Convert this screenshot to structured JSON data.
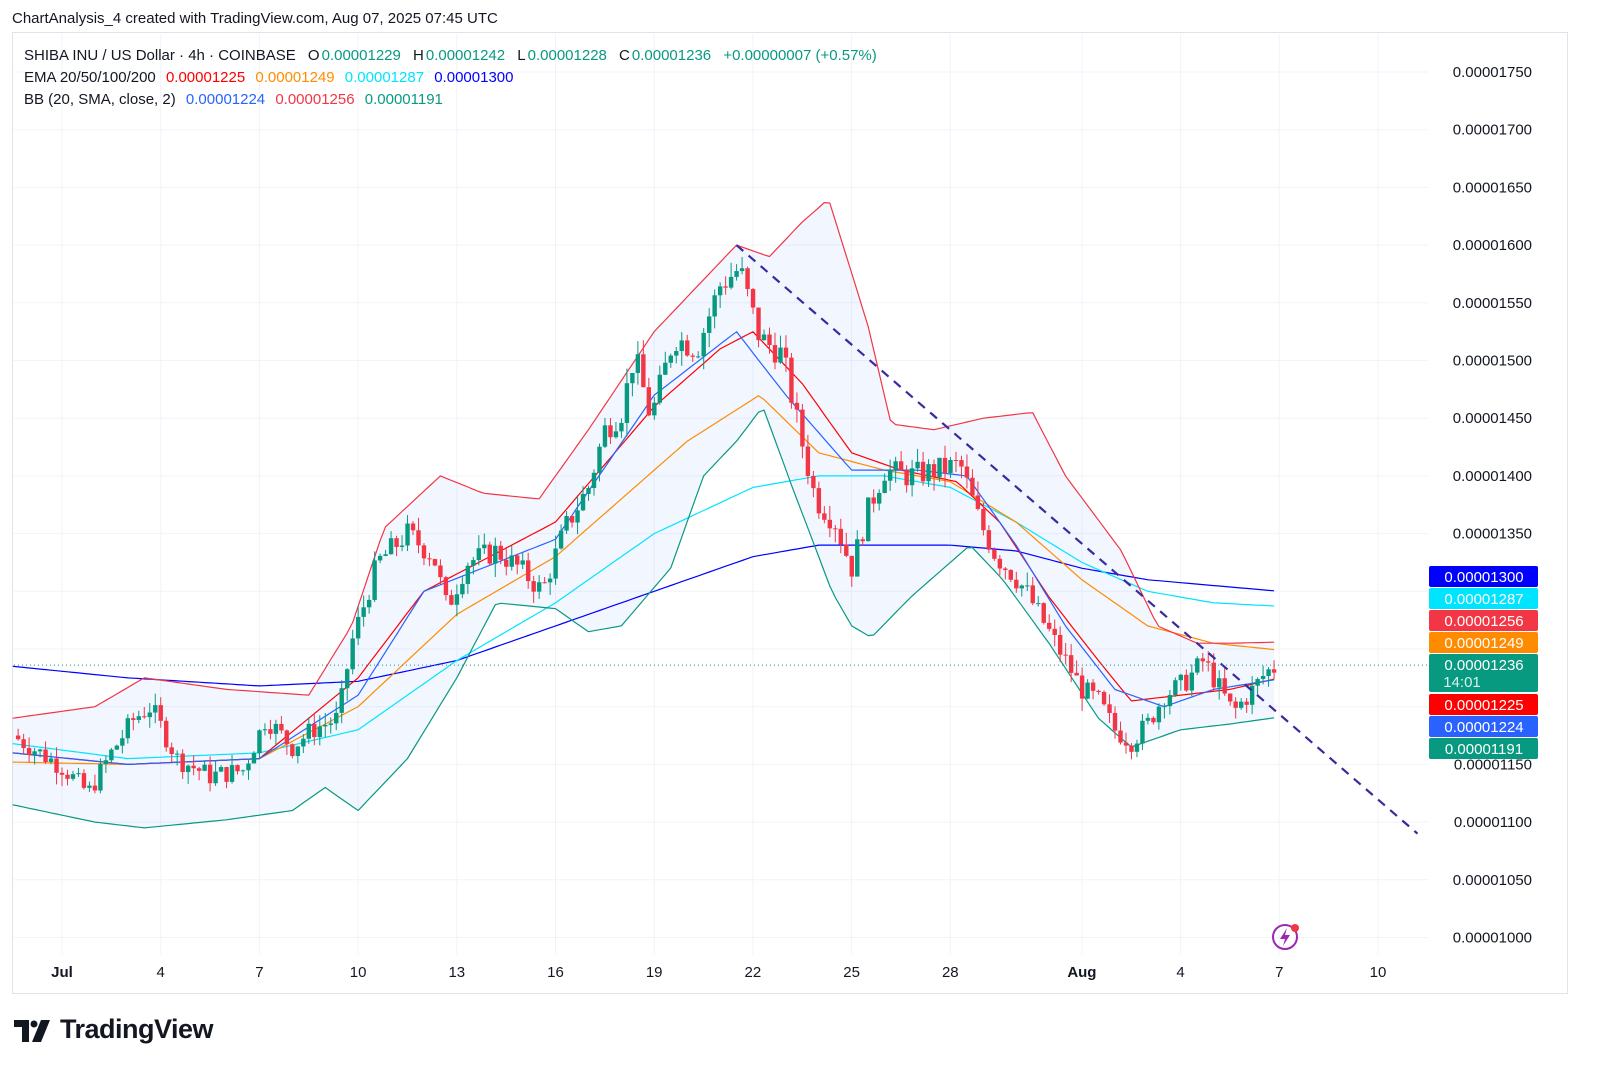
{
  "header": {
    "created_line": "ChartAnalysis_4 created with TradingView.com, Aug 07, 2025 07:45 UTC"
  },
  "legend": {
    "symbol": "SHIBA INU / US Dollar · 4h · COINBASE",
    "o_label": "O",
    "o_value": "0.00001229",
    "h_label": "H",
    "h_value": "0.00001242",
    "l_label": "L",
    "l_value": "0.00001228",
    "c_label": "C",
    "c_value": "0.00001236",
    "change": "+0.00000007 (+0.57%)",
    "ema_label": "EMA 20/50/100/200",
    "ema20": "0.00001225",
    "ema50": "0.00001249",
    "ema100": "0.00001287",
    "ema200": "0.00001300",
    "bb_label": "BB (20, SMA, close, 2)",
    "bb_basis": "0.00001224",
    "bb_upper": "0.00001256",
    "bb_lower": "0.00001191"
  },
  "price_tags": [
    {
      "value": "0.00001300",
      "color": "#0000ff"
    },
    {
      "value": "0.00001287",
      "color": "#00e5ff"
    },
    {
      "value": "0.00001256",
      "color": "#f23645"
    },
    {
      "value": "0.00001249",
      "color": "#ff8c00"
    },
    {
      "value": "0.00001236",
      "extra": "14:01",
      "color": "#089981"
    },
    {
      "value": "0.00001225",
      "color": "#ff0000"
    },
    {
      "value": "0.00001224",
      "color": "#2962ff"
    },
    {
      "value": "0.00001191",
      "color": "#089981"
    }
  ],
  "colors": {
    "up": "#089981",
    "down": "#f23645",
    "ema20": "#ff0000",
    "ema50": "#ff8c00",
    "ema100": "#00e5ff",
    "ema200": "#0000ff",
    "bb_basis": "#2962ff",
    "bb_upper": "#f23645",
    "bb_lower": "#089981",
    "bb_fill": "#2962ff",
    "trendline": "#3a2a9e"
  },
  "brand": {
    "name": "TradingView"
  },
  "chart_data": {
    "type": "candlestick",
    "timeframe": "4h",
    "y_ticks": [
      "0.00001750",
      "0.00001700",
      "0.00001650",
      "0.00001600",
      "0.00001550",
      "0.00001500",
      "0.00001450",
      "0.00001400",
      "0.00001350",
      "0.00001150",
      "0.00001100",
      "0.00001050",
      "0.00001000"
    ],
    "ylim": [
      9.85e-06,
      1.775e-05
    ],
    "x_ticks": [
      {
        "label": "Jul",
        "day": 1,
        "bold": true
      },
      {
        "label": "4",
        "day": 4
      },
      {
        "label": "7",
        "day": 7
      },
      {
        "label": "10",
        "day": 10
      },
      {
        "label": "13",
        "day": 13
      },
      {
        "label": "16",
        "day": 16
      },
      {
        "label": "19",
        "day": 19
      },
      {
        "label": "22",
        "day": 22
      },
      {
        "label": "25",
        "day": 25
      },
      {
        "label": "28",
        "day": 28
      },
      {
        "label": "Aug",
        "day": 32,
        "bold": true
      },
      {
        "label": "4",
        "day": 35
      },
      {
        "label": "7",
        "day": 38
      },
      {
        "label": "10",
        "day": 41
      }
    ],
    "ohlc_keyframes_e8": [
      [
        -0.5,
        1175
      ],
      [
        1.0,
        1148
      ],
      [
        1.8,
        1125
      ],
      [
        2.5,
        1160
      ],
      [
        3.2,
        1190
      ],
      [
        3.7,
        1200
      ],
      [
        4.5,
        1155
      ],
      [
        5.5,
        1140
      ],
      [
        6.5,
        1145
      ],
      [
        7.2,
        1190
      ],
      [
        8.0,
        1165
      ],
      [
        8.6,
        1180
      ],
      [
        9.4,
        1190
      ],
      [
        9.8,
        1255
      ],
      [
        10.6,
        1325
      ],
      [
        11.5,
        1350
      ],
      [
        12.3,
        1330
      ],
      [
        12.7,
        1285
      ],
      [
        13.3,
        1325
      ],
      [
        14.2,
        1335
      ],
      [
        14.9,
        1320
      ],
      [
        15.6,
        1300
      ],
      [
        16.3,
        1355
      ],
      [
        17.0,
        1390
      ],
      [
        17.5,
        1440
      ],
      [
        18.0,
        1455
      ],
      [
        18.4,
        1505
      ],
      [
        18.9,
        1450
      ],
      [
        19.6,
        1520
      ],
      [
        20.3,
        1510
      ],
      [
        21.0,
        1565
      ],
      [
        21.6,
        1580
      ],
      [
        22.2,
        1520
      ],
      [
        22.9,
        1505
      ],
      [
        23.4,
        1440
      ],
      [
        23.9,
        1380
      ],
      [
        24.5,
        1360
      ],
      [
        25.0,
        1320
      ],
      [
        25.5,
        1370
      ],
      [
        26.0,
        1405
      ],
      [
        26.7,
        1400
      ],
      [
        27.6,
        1405
      ],
      [
        28.3,
        1410
      ],
      [
        28.9,
        1360
      ],
      [
        29.4,
        1330
      ],
      [
        29.9,
        1315
      ],
      [
        30.3,
        1300
      ],
      [
        31.0,
        1265
      ],
      [
        31.5,
        1240
      ],
      [
        32.0,
        1215
      ],
      [
        32.5,
        1205
      ],
      [
        33.0,
        1180
      ],
      [
        33.5,
        1170
      ],
      [
        34.0,
        1185
      ],
      [
        34.5,
        1210
      ],
      [
        35.1,
        1220
      ],
      [
        35.7,
        1240
      ],
      [
        36.2,
        1215
      ],
      [
        36.6,
        1195
      ],
      [
        37.2,
        1215
      ],
      [
        37.6,
        1230
      ],
      [
        38.0,
        1236
      ]
    ],
    "ema20_e8": [
      [
        -0.5,
        1160
      ],
      [
        3,
        1150
      ],
      [
        7,
        1155
      ],
      [
        10,
        1225
      ],
      [
        12,
        1300
      ],
      [
        16,
        1360
      ],
      [
        19,
        1460
      ],
      [
        21,
        1510
      ],
      [
        22,
        1525
      ],
      [
        23.5,
        1480
      ],
      [
        25,
        1420
      ],
      [
        26.5,
        1405
      ],
      [
        28.2,
        1395
      ],
      [
        29.5,
        1360
      ],
      [
        31,
        1295
      ],
      [
        32.5,
        1240
      ],
      [
        33.5,
        1205
      ],
      [
        35,
        1210
      ],
      [
        36.5,
        1215
      ],
      [
        38,
        1225
      ]
    ],
    "ema50_e8": [
      [
        -0.5,
        1152
      ],
      [
        3,
        1150
      ],
      [
        7,
        1155
      ],
      [
        10,
        1200
      ],
      [
        13,
        1280
      ],
      [
        16,
        1330
      ],
      [
        18,
        1380
      ],
      [
        20,
        1430
      ],
      [
        22.2,
        1470
      ],
      [
        24,
        1420
      ],
      [
        26,
        1405
      ],
      [
        28,
        1395
      ],
      [
        30,
        1360
      ],
      [
        32,
        1310
      ],
      [
        34,
        1270
      ],
      [
        36,
        1255
      ],
      [
        38,
        1249
      ]
    ],
    "ema100_e8": [
      [
        -0.5,
        1168
      ],
      [
        3,
        1155
      ],
      [
        7,
        1160
      ],
      [
        10,
        1180
      ],
      [
        13,
        1240
      ],
      [
        16,
        1290
      ],
      [
        19,
        1350
      ],
      [
        22,
        1390
      ],
      [
        24,
        1400
      ],
      [
        26,
        1400
      ],
      [
        28,
        1390
      ],
      [
        30,
        1360
      ],
      [
        32,
        1325
      ],
      [
        34,
        1300
      ],
      [
        36,
        1290
      ],
      [
        38,
        1287
      ]
    ],
    "ema200_e8": [
      [
        -0.5,
        1235
      ],
      [
        3,
        1225
      ],
      [
        7,
        1218
      ],
      [
        10,
        1222
      ],
      [
        13,
        1240
      ],
      [
        16,
        1270
      ],
      [
        19,
        1300
      ],
      [
        22,
        1330
      ],
      [
        24,
        1340
      ],
      [
        28,
        1340
      ],
      [
        30,
        1335
      ],
      [
        32,
        1320
      ],
      [
        34,
        1310
      ],
      [
        36,
        1305
      ],
      [
        38,
        1300
      ]
    ],
    "bb_basis_e8": [
      [
        -0.5,
        1160
      ],
      [
        3,
        1150
      ],
      [
        7,
        1155
      ],
      [
        10,
        1210
      ],
      [
        12,
        1300
      ],
      [
        16,
        1345
      ],
      [
        19,
        1470
      ],
      [
        21.5,
        1525
      ],
      [
        23,
        1470
      ],
      [
        25,
        1405
      ],
      [
        27,
        1405
      ],
      [
        28.5,
        1400
      ],
      [
        30,
        1340
      ],
      [
        31.5,
        1270
      ],
      [
        33,
        1215
      ],
      [
        34.5,
        1200
      ],
      [
        36,
        1215
      ],
      [
        38,
        1224
      ]
    ],
    "bb_upper_e8": [
      [
        -0.5,
        1190
      ],
      [
        2,
        1200
      ],
      [
        3.5,
        1225
      ],
      [
        6,
        1215
      ],
      [
        8.5,
        1210
      ],
      [
        9.8,
        1270
      ],
      [
        10.8,
        1355
      ],
      [
        12.5,
        1400
      ],
      [
        13.8,
        1385
      ],
      [
        15.5,
        1380
      ],
      [
        17,
        1440
      ],
      [
        19,
        1525
      ],
      [
        21.5,
        1600
      ],
      [
        22.5,
        1590
      ],
      [
        23.5,
        1620
      ],
      [
        24.3,
        1640
      ],
      [
        25.5,
        1530
      ],
      [
        26.2,
        1445
      ],
      [
        27.5,
        1440
      ],
      [
        29,
        1450
      ],
      [
        30.5,
        1455
      ],
      [
        31.5,
        1400
      ],
      [
        33.2,
        1335
      ],
      [
        34.3,
        1270
      ],
      [
        35.5,
        1255
      ],
      [
        36.5,
        1255
      ],
      [
        38,
        1256
      ]
    ],
    "bb_lower_e8": [
      [
        -0.5,
        1115
      ],
      [
        2,
        1100
      ],
      [
        3.5,
        1095
      ],
      [
        6,
        1102
      ],
      [
        8,
        1110
      ],
      [
        9,
        1130
      ],
      [
        10,
        1110
      ],
      [
        11.5,
        1155
      ],
      [
        13,
        1225
      ],
      [
        14.2,
        1290
      ],
      [
        16,
        1285
      ],
      [
        17,
        1265
      ],
      [
        18,
        1270
      ],
      [
        19.5,
        1320
      ],
      [
        20.5,
        1400
      ],
      [
        21.5,
        1430
      ],
      [
        22.3,
        1460
      ],
      [
        23.2,
        1390
      ],
      [
        24.4,
        1300
      ],
      [
        25.0,
        1270
      ],
      [
        25.6,
        1260
      ],
      [
        26.8,
        1295
      ],
      [
        28.6,
        1340
      ],
      [
        29.6,
        1310
      ],
      [
        31,
        1255
      ],
      [
        32.5,
        1190
      ],
      [
        33.5,
        1165
      ],
      [
        35,
        1180
      ],
      [
        36.5,
        1185
      ],
      [
        38,
        1191
      ]
    ],
    "trendline": [
      {
        "day": 21.5,
        "price": 1.6e-05
      },
      {
        "day": 42.2,
        "price": 1.09e-05
      }
    ]
  }
}
